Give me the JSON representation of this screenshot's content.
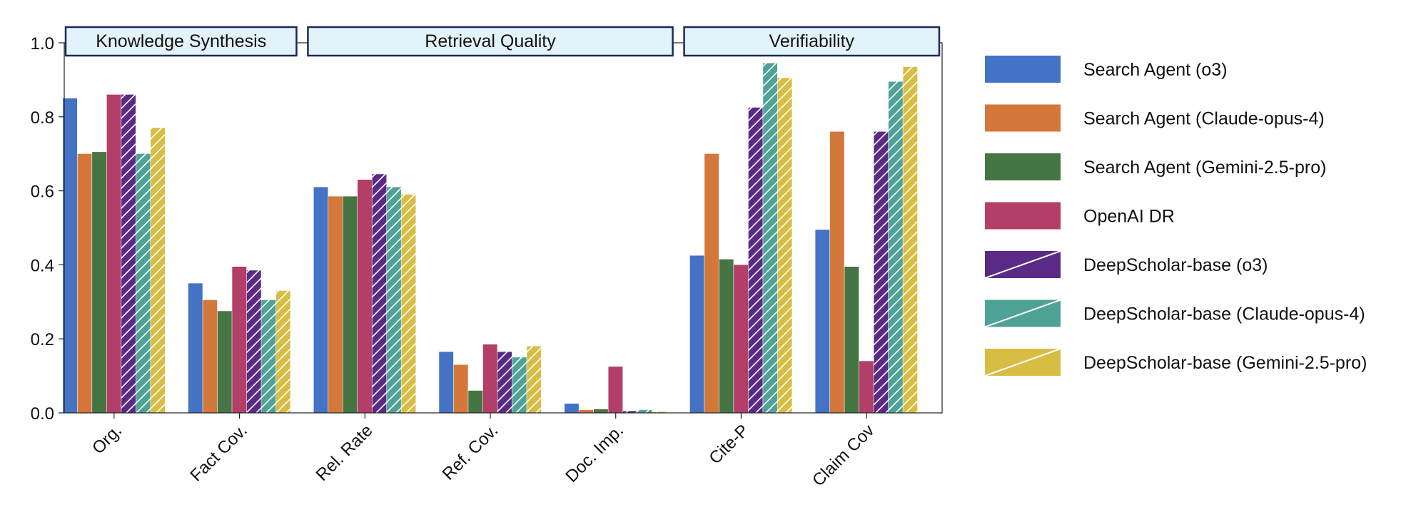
{
  "chart_data": {
    "type": "bar",
    "categories": [
      "Org.",
      "Fact Cov.",
      "Rel. Rate",
      "Ref. Cov.",
      "Doc. Imp.",
      "Cite-P",
      "Claim Cov"
    ],
    "ylim": [
      0,
      1.0
    ],
    "yticks": [
      "0.0",
      "0.2",
      "0.4",
      "0.6",
      "0.8",
      "1.0"
    ],
    "grid": false,
    "legend_position": "right",
    "category_groups": [
      {
        "label": "Knowledge Synthesis",
        "categories": [
          "Org.",
          "Fact Cov."
        ]
      },
      {
        "label": "Retrieval Quality",
        "categories": [
          "Rel. Rate",
          "Ref. Cov.",
          "Doc. Imp."
        ]
      },
      {
        "label": "Verifiability",
        "categories": [
          "Cite-P",
          "Claim Cov"
        ]
      }
    ],
    "series": [
      {
        "name": "Search Agent (o3)",
        "color": "#4472c4",
        "hatched": false,
        "values": [
          0.85,
          0.35,
          0.61,
          0.165,
          0.025,
          0.425,
          0.495
        ]
      },
      {
        "name": "Search Agent (Claude-opus-4)",
        "color": "#d4773a",
        "hatched": false,
        "values": [
          0.7,
          0.305,
          0.585,
          0.13,
          0.008,
          0.7,
          0.76
        ]
      },
      {
        "name": "Search Agent (Gemini-2.5-pro)",
        "color": "#467544",
        "hatched": false,
        "values": [
          0.705,
          0.275,
          0.585,
          0.06,
          0.01,
          0.415,
          0.395
        ]
      },
      {
        "name": "OpenAI DR",
        "color": "#b33e68",
        "hatched": false,
        "values": [
          0.86,
          0.395,
          0.63,
          0.185,
          0.125,
          0.4,
          0.14
        ]
      },
      {
        "name": "DeepScholar-base (o3)",
        "color": "#5b2a86",
        "hatched": true,
        "values": [
          0.86,
          0.385,
          0.645,
          0.165,
          0.005,
          0.825,
          0.76
        ]
      },
      {
        "name": "DeepScholar-base (Claude-opus-4)",
        "color": "#4fa396",
        "hatched": true,
        "values": [
          0.7,
          0.305,
          0.61,
          0.15,
          0.008,
          0.945,
          0.895
        ]
      },
      {
        "name": "DeepScholar-base (Gemini-2.5-pro)",
        "color": "#d8bd44",
        "hatched": true,
        "values": [
          0.77,
          0.33,
          0.59,
          0.18,
          0.003,
          0.905,
          0.935
        ]
      }
    ]
  }
}
